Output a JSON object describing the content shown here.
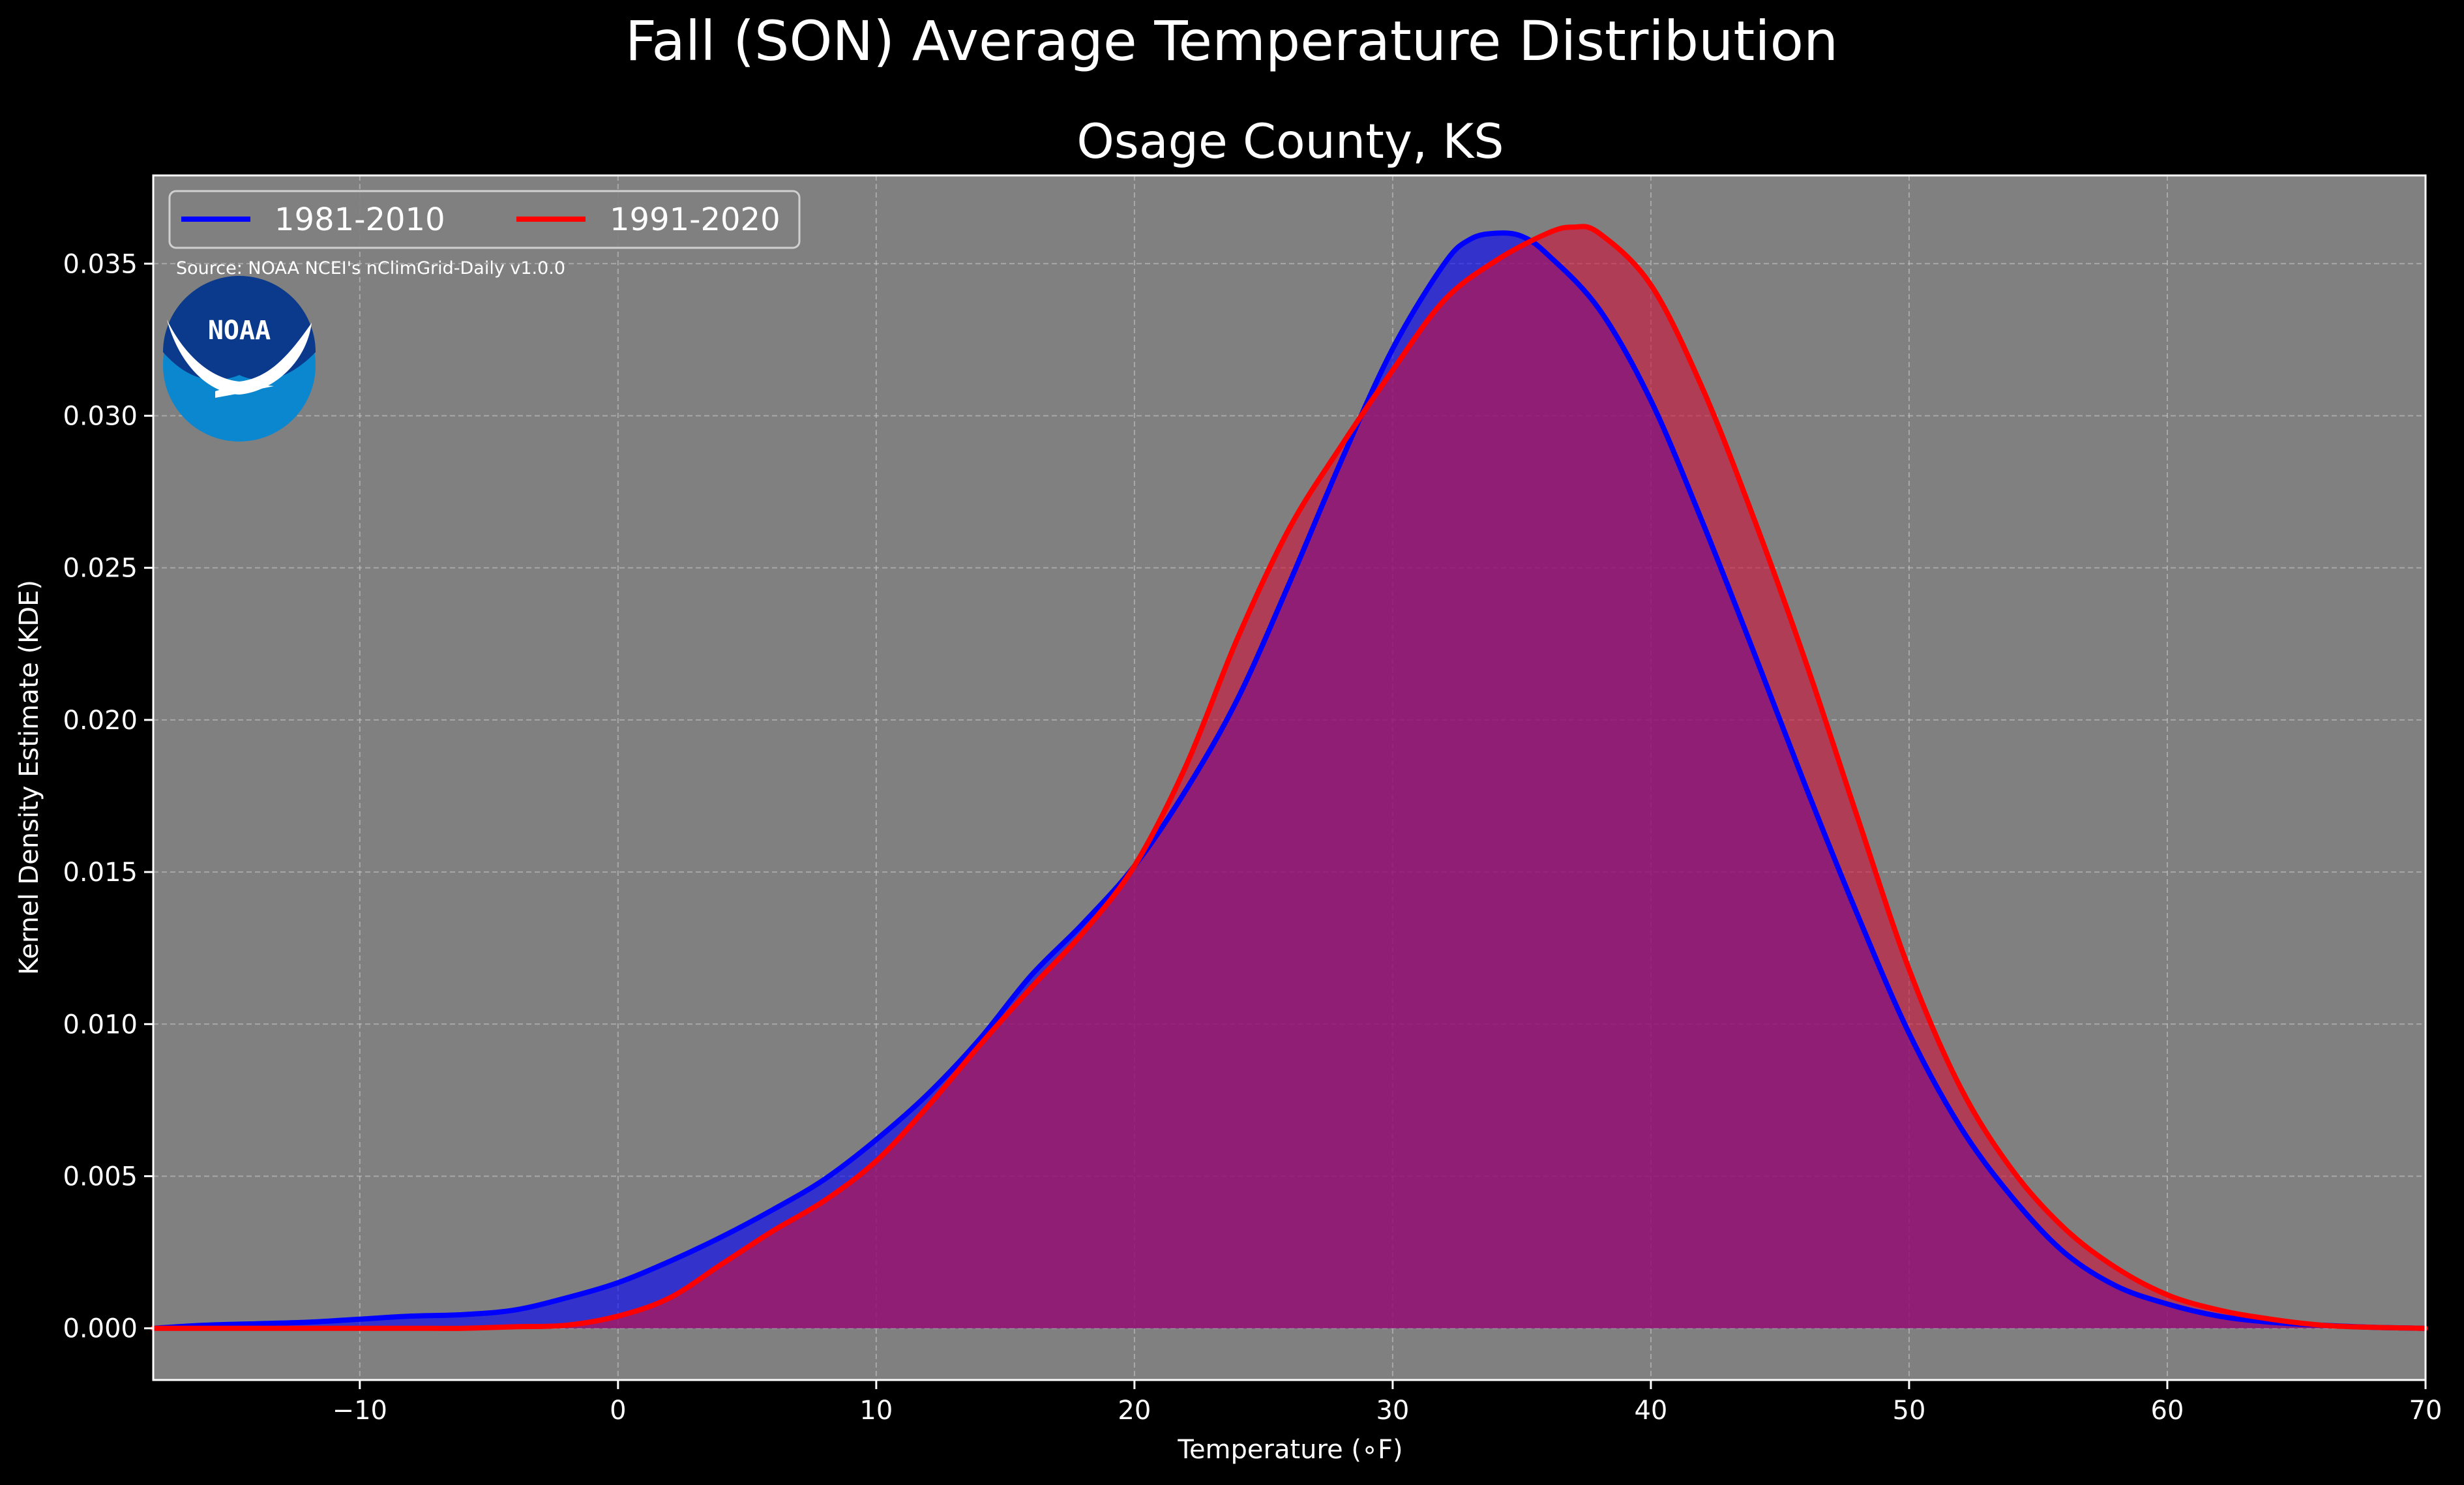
{
  "chart_data": {
    "type": "area",
    "title": "Fall (SON) Average Temperature Distribution",
    "subtitle": "Osage County, KS",
    "xlabel": "Temperature (∘F)",
    "ylabel": "Kernel Density Estimate (KDE)",
    "xlim": [
      -18,
      70
    ],
    "ylim": [
      -0.0017,
      0.0379
    ],
    "x_ticks": [
      -10,
      0,
      10,
      20,
      30,
      40,
      50,
      60,
      70
    ],
    "x_tick_labels": [
      "−10",
      "0",
      "10",
      "20",
      "30",
      "40",
      "50",
      "60",
      "70"
    ],
    "y_ticks": [
      0.0,
      0.005,
      0.01,
      0.015,
      0.02,
      0.025,
      0.03,
      0.035
    ],
    "y_tick_labels": [
      "0.000",
      "0.005",
      "0.010",
      "0.015",
      "0.020",
      "0.025",
      "0.030",
      "0.035"
    ],
    "grid": true,
    "legend_position": "upper-left",
    "annotation": "Source: NOAA NCEI's nClimGrid-Daily v1.0.0",
    "logo_text": "NOAA",
    "series": [
      {
        "name": "1981-2010",
        "color": "#0000ff",
        "fill_color": "#0000ff",
        "x": [
          -18,
          -16,
          -14,
          -12,
          -10,
          -8,
          -6,
          -4,
          -2,
          0,
          2,
          4,
          6,
          8,
          10,
          12,
          14,
          16,
          18,
          20,
          22,
          24,
          26,
          28,
          30,
          32,
          33,
          34,
          35,
          36,
          38,
          40,
          42,
          44,
          46,
          48,
          50,
          52,
          54,
          56,
          58,
          60,
          62,
          64,
          66,
          68,
          70
        ],
        "y": [
          0.0,
          0.0001,
          0.00015,
          0.0002,
          0.0003,
          0.0004,
          0.00045,
          0.0006,
          0.001,
          0.0015,
          0.0022,
          0.003,
          0.0039,
          0.0049,
          0.0062,
          0.0077,
          0.0095,
          0.0116,
          0.0133,
          0.0152,
          0.0177,
          0.0207,
          0.0245,
          0.0285,
          0.0322,
          0.035,
          0.0358,
          0.036,
          0.0359,
          0.0353,
          0.0335,
          0.0305,
          0.0265,
          0.0222,
          0.0178,
          0.0136,
          0.0097,
          0.0066,
          0.0043,
          0.0025,
          0.0014,
          0.0008,
          0.0004,
          0.0002,
          0.0001,
          3e-05,
          0.0
        ]
      },
      {
        "name": "1991-2020",
        "color": "#ff0000",
        "fill_color": "#d0103a",
        "x": [
          -18,
          -16,
          -14,
          -12,
          -10,
          -8,
          -6,
          -4,
          -2,
          0,
          2,
          4,
          6,
          8,
          10,
          12,
          14,
          16,
          18,
          20,
          22,
          24,
          26,
          28,
          30,
          32,
          34,
          36,
          37,
          38,
          40,
          42,
          44,
          46,
          48,
          50,
          52,
          54,
          56,
          58,
          60,
          62,
          64,
          66,
          68,
          70
        ],
        "y": [
          0.0,
          0.0,
          0.0,
          0.0,
          0.0,
          0.0,
          0.0,
          5e-05,
          0.0001,
          0.0004,
          0.001,
          0.0021,
          0.0032,
          0.0042,
          0.0055,
          0.0073,
          0.0093,
          0.0112,
          0.013,
          0.0152,
          0.0185,
          0.0227,
          0.0263,
          0.029,
          0.0315,
          0.0338,
          0.0351,
          0.036,
          0.0362,
          0.036,
          0.0343,
          0.0309,
          0.0266,
          0.0219,
          0.0168,
          0.0118,
          0.0079,
          0.0052,
          0.0033,
          0.002,
          0.0011,
          0.0006,
          0.0003,
          0.0001,
          3e-05,
          0.0
        ]
      }
    ]
  }
}
